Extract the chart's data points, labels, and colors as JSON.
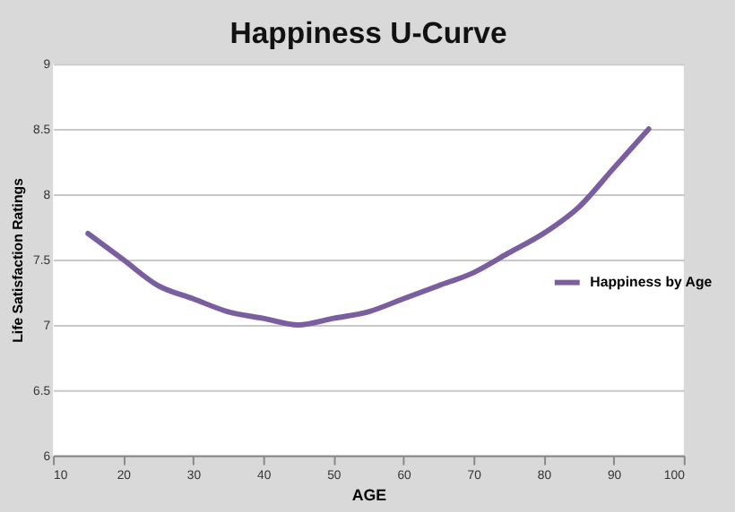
{
  "chart_data": {
    "type": "line",
    "title": "Happiness U-Curve",
    "xlabel": "AGE",
    "ylabel": "Life Satisfaction Ratings",
    "x": [
      15,
      20,
      25,
      30,
      35,
      40,
      45,
      50,
      55,
      60,
      65,
      70,
      75,
      80,
      85,
      90,
      95
    ],
    "series": [
      {
        "name": "Happiness by Age",
        "color": "#7b5ea0",
        "values": [
          7.7,
          7.5,
          7.3,
          7.2,
          7.1,
          7.05,
          7.0,
          7.05,
          7.1,
          7.2,
          7.3,
          7.4,
          7.55,
          7.7,
          7.9,
          8.2,
          8.5
        ]
      }
    ],
    "xlim": [
      10,
      100
    ],
    "xticks": [
      10,
      20,
      30,
      40,
      50,
      60,
      70,
      80,
      90,
      100
    ],
    "ylim": [
      6,
      9
    ],
    "yticks": [
      6,
      6.5,
      7,
      7.5,
      8,
      8.5,
      9
    ],
    "grid": "y",
    "legend": "right",
    "marker": "none",
    "line_style": "solid"
  }
}
